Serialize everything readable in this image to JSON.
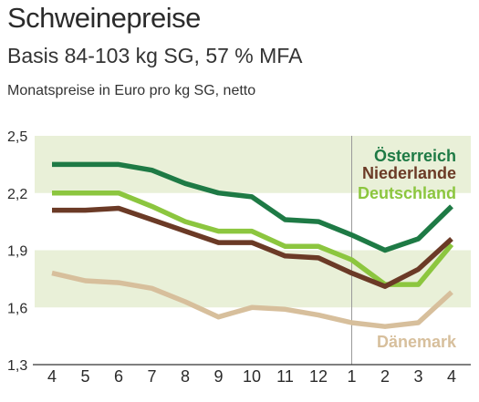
{
  "header": {
    "title": "Schweinepreise",
    "subtitle": "Basis 84-103 kg SG, 57 % MFA",
    "unit_note": "Monatspreise in Euro pro kg SG, netto"
  },
  "chart_data": {
    "type": "line",
    "categories": [
      "4",
      "5",
      "6",
      "7",
      "8",
      "9",
      "10",
      "11",
      "12",
      "1",
      "2",
      "3",
      "4"
    ],
    "ylim": [
      1.3,
      2.5
    ],
    "yticks": [
      1.3,
      1.6,
      1.9,
      2.2,
      2.5
    ],
    "ytick_labels": [
      "1,3",
      "1,6",
      "1,9",
      "2,2",
      "2,5"
    ],
    "grid_bands": [
      [
        1.6,
        1.9
      ],
      [
        2.2,
        2.5
      ]
    ],
    "year_divider_after_index": 9,
    "series": [
      {
        "name": "Österreich",
        "color": "#1e7a45",
        "values": [
          2.35,
          2.35,
          2.35,
          2.32,
          2.25,
          2.2,
          2.18,
          2.06,
          2.05,
          1.98,
          1.9,
          1.96,
          2.13
        ]
      },
      {
        "name": "Niederlande",
        "color": "#6b3a26",
        "values": [
          2.11,
          2.11,
          2.12,
          2.06,
          2.0,
          1.94,
          1.94,
          1.87,
          1.86,
          1.78,
          1.71,
          1.8,
          1.96
        ]
      },
      {
        "name": "Deutschland",
        "color": "#8cc63f",
        "values": [
          2.2,
          2.2,
          2.2,
          2.13,
          2.05,
          2.0,
          2.0,
          1.92,
          1.92,
          1.85,
          1.72,
          1.72,
          1.93
        ]
      },
      {
        "name": "Dänemark",
        "color": "#d7bf9c",
        "values": [
          1.78,
          1.74,
          1.73,
          1.7,
          1.63,
          1.55,
          1.6,
          1.59,
          1.56,
          1.52,
          1.5,
          1.52,
          1.68
        ]
      }
    ]
  }
}
